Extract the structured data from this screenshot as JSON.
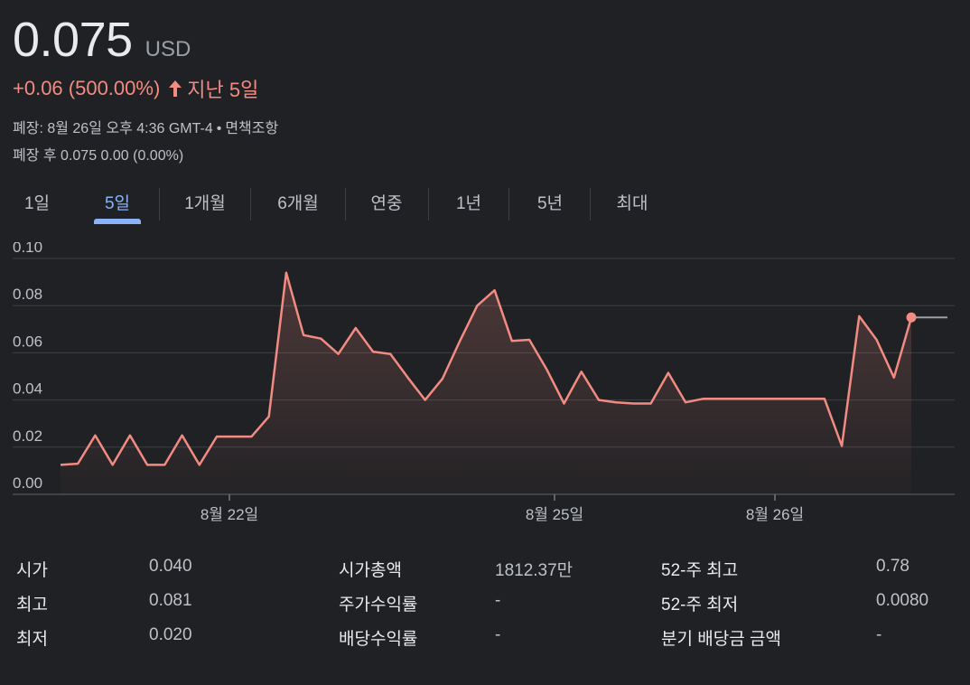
{
  "quote": {
    "price": "0.075",
    "currency": "USD",
    "change": "+0.06 (500.00%)",
    "period": "지난 5일",
    "close_label": "폐장: 8월 26일 오후 4:36 GMT-4",
    "disclaimer": "면책조항",
    "after_hours": "폐장 후 0.075 0.00 (0.00%)"
  },
  "tabs": [
    "1일",
    "5일",
    "1개월",
    "6개월",
    "연중",
    "1년",
    "5년",
    "최대"
  ],
  "active_tab": "5일",
  "colors": {
    "background": "#202124",
    "line": "#f28b82",
    "active_tab": "#8ab4f8",
    "grid": "#3c4043"
  },
  "chart_data": {
    "type": "line",
    "ylim": [
      0,
      0.1
    ],
    "y_ticks": [
      "0.10",
      "0.08",
      "0.06",
      "0.04",
      "0.02",
      "0.00"
    ],
    "x_tick_labels": [
      "8월 22일",
      "8월 25일",
      "8월 26일"
    ],
    "grid": true,
    "previous_close_line": 0.075,
    "values": [
      0.0125,
      0.013,
      0.025,
      0.0125,
      0.025,
      0.0125,
      0.0125,
      0.025,
      0.0125,
      0.0245,
      0.0245,
      0.0245,
      0.033,
      0.094,
      0.0675,
      0.066,
      0.0595,
      0.0705,
      0.0605,
      0.0595,
      0.0495,
      0.04,
      0.049,
      0.065,
      0.08,
      0.0865,
      0.065,
      0.0655,
      0.053,
      0.0385,
      0.052,
      0.04,
      0.039,
      0.0385,
      0.0385,
      0.0515,
      0.039,
      0.0405,
      0.0405,
      0.0405,
      0.0405,
      0.0405,
      0.0405,
      0.0405,
      0.0405,
      0.0205,
      0.0755,
      0.0655,
      0.0495,
      0.075
    ]
  },
  "stats": [
    [
      {
        "label": "시가",
        "value": "0.040"
      },
      {
        "label": "시가총액",
        "value": "1812.37만"
      },
      {
        "label": "52-주 최고",
        "value": "0.78"
      }
    ],
    [
      {
        "label": "최고",
        "value": "0.081"
      },
      {
        "label": "주가수익률",
        "value": "-"
      },
      {
        "label": "52-주 최저",
        "value": "0.0080"
      }
    ],
    [
      {
        "label": "최저",
        "value": "0.020"
      },
      {
        "label": "배당수익률",
        "value": "-"
      },
      {
        "label": "분기 배당금 금액",
        "value": "-"
      }
    ]
  ]
}
